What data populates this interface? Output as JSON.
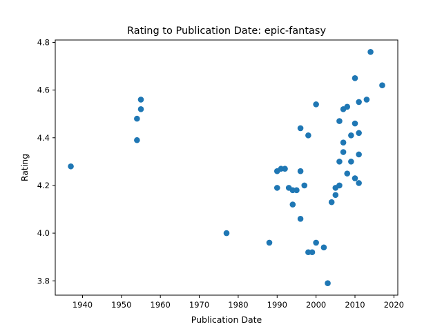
{
  "chart_data": {
    "type": "scatter",
    "title": "Rating to Publication Date: epic-fantasy",
    "xlabel": "Publication Date",
    "ylabel": "Rating",
    "xlim": [
      1933,
      2021
    ],
    "ylim": [
      3.74,
      4.81
    ],
    "xticks": [
      1940,
      1950,
      1960,
      1970,
      1980,
      1990,
      2000,
      2010,
      2020
    ],
    "yticks": [
      3.8,
      4.0,
      4.2,
      4.4,
      4.6,
      4.8
    ],
    "ytick_labels": [
      "3.8",
      "4.0",
      "4.2",
      "4.4",
      "4.6",
      "4.8"
    ],
    "grid": false,
    "legend": false,
    "marker_color": "#1f77b4",
    "series": [
      {
        "points": [
          [
            1937,
            4.28
          ],
          [
            1954,
            4.48
          ],
          [
            1954,
            4.39
          ],
          [
            1955,
            4.56
          ],
          [
            1955,
            4.52
          ],
          [
            1977,
            4.0
          ],
          [
            1988,
            3.96
          ],
          [
            1990,
            4.26
          ],
          [
            1990,
            4.19
          ],
          [
            1991,
            4.27
          ],
          [
            1992,
            4.27
          ],
          [
            1993,
            4.19
          ],
          [
            1994,
            4.18
          ],
          [
            1994,
            4.12
          ],
          [
            1995,
            4.18
          ],
          [
            1996,
            4.44
          ],
          [
            1996,
            4.26
          ],
          [
            1996,
            4.06
          ],
          [
            1997,
            4.2
          ],
          [
            1998,
            4.41
          ],
          [
            1998,
            3.92
          ],
          [
            1999,
            3.92
          ],
          [
            2000,
            4.54
          ],
          [
            2000,
            3.96
          ],
          [
            2002,
            3.94
          ],
          [
            2003,
            3.79
          ],
          [
            2004,
            4.13
          ],
          [
            2005,
            4.19
          ],
          [
            2005,
            4.16
          ],
          [
            2006,
            4.47
          ],
          [
            2006,
            4.3
          ],
          [
            2006,
            4.2
          ],
          [
            2007,
            4.52
          ],
          [
            2007,
            4.38
          ],
          [
            2007,
            4.34
          ],
          [
            2008,
            4.53
          ],
          [
            2008,
            4.25
          ],
          [
            2009,
            4.41
          ],
          [
            2009,
            4.3
          ],
          [
            2010,
            4.65
          ],
          [
            2010,
            4.46
          ],
          [
            2010,
            4.23
          ],
          [
            2011,
            4.55
          ],
          [
            2011,
            4.42
          ],
          [
            2011,
            4.33
          ],
          [
            2011,
            4.21
          ],
          [
            2013,
            4.56
          ],
          [
            2014,
            4.76
          ],
          [
            2017,
            4.62
          ]
        ]
      }
    ]
  }
}
